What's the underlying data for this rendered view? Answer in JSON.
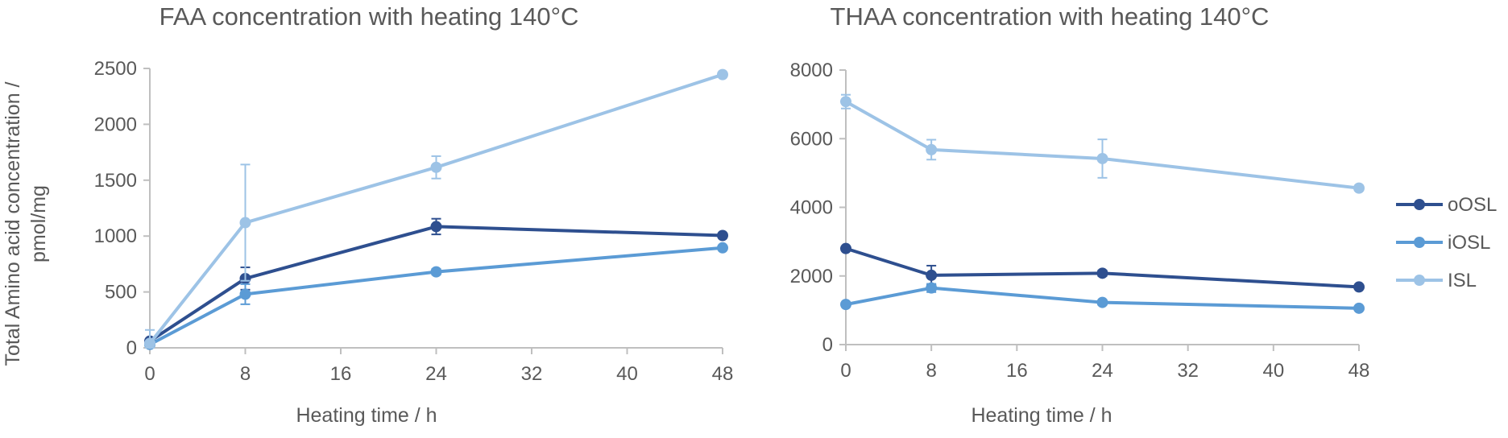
{
  "chart_data": [
    {
      "type": "line",
      "title": "FAA concentration with heating 140°C",
      "xlabel": "Heating time / h",
      "ylabel_lines": [
        "Total Amino acid concentration /",
        "pmol/mg"
      ],
      "x_ticks": [
        0,
        8,
        16,
        24,
        32,
        40,
        48
      ],
      "y_ticks": [
        0,
        500,
        1000,
        1500,
        2000,
        2500
      ],
      "xlim": [
        0,
        48
      ],
      "ylim": [
        0,
        2500
      ],
      "x": [
        0,
        8,
        24,
        48
      ],
      "series": [
        {
          "name": "oOSL",
          "color": "#2E4F8F",
          "values": [
            60,
            620,
            1085,
            1005
          ],
          "errors": [
            20,
            100,
            70,
            20
          ]
        },
        {
          "name": "iOSL",
          "color": "#5B9BD5",
          "values": [
            30,
            480,
            680,
            895
          ],
          "errors": [
            20,
            90,
            25,
            15
          ]
        },
        {
          "name": "ISL",
          "color": "#9DC3E6",
          "values": [
            40,
            1120,
            1615,
            2445
          ],
          "errors": [
            120,
            520,
            100,
            20
          ]
        }
      ]
    },
    {
      "type": "line",
      "title": "THAA concentration with heating 140°C",
      "xlabel": "Heating time / h",
      "x_ticks": [
        0,
        8,
        16,
        24,
        32,
        40,
        48
      ],
      "y_ticks": [
        0,
        2000,
        4000,
        6000,
        8000
      ],
      "xlim": [
        0,
        48
      ],
      "ylim": [
        0,
        8000
      ],
      "x": [
        0,
        8,
        24,
        48
      ],
      "series": [
        {
          "name": "oOSL",
          "color": "#2E4F8F",
          "values": [
            2800,
            2020,
            2080,
            1680
          ],
          "errors": [
            60,
            280,
            80,
            60
          ]
        },
        {
          "name": "iOSL",
          "color": "#5B9BD5",
          "values": [
            1170,
            1650,
            1230,
            1060
          ],
          "errors": [
            60,
            120,
            70,
            50
          ]
        },
        {
          "name": "ISL",
          "color": "#9DC3E6",
          "values": [
            7080,
            5680,
            5420,
            4560
          ],
          "errors": [
            200,
            290,
            560,
            70
          ]
        }
      ],
      "legend": {
        "position": "right",
        "entries": [
          "oOSL",
          "iOSL",
          "ISL"
        ]
      }
    }
  ]
}
